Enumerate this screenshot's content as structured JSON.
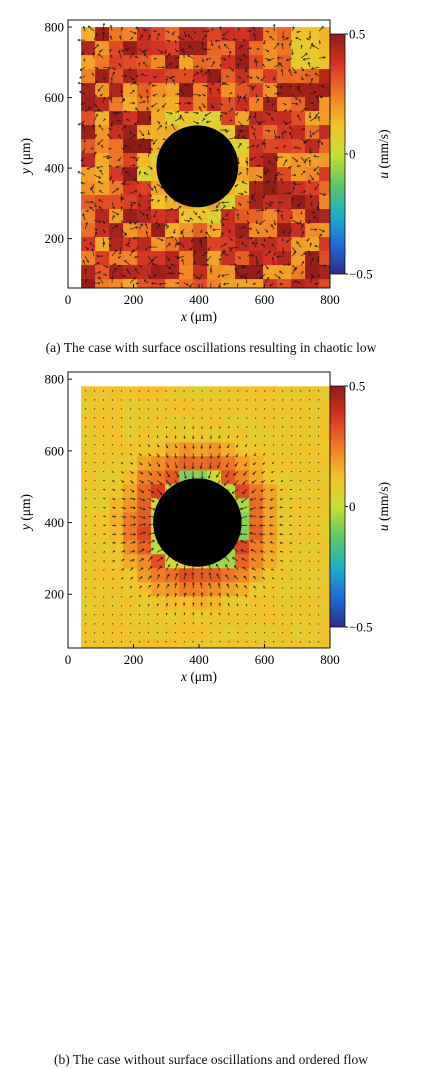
{
  "panels": [
    {
      "id": "a",
      "caption": "(a) The case with surface oscillations resulting in chaotic low",
      "flow": "chaotic",
      "chart_data": {
        "type": "heatmap",
        "title": "",
        "xlabel": "x (μm)",
        "ylabel": "y (μm)",
        "x_ticks": [
          "0",
          "200",
          "400",
          "600",
          "800"
        ],
        "y_ticks": [
          "200",
          "400",
          "600",
          "800"
        ],
        "xlim": [
          0,
          800
        ],
        "ylim": [
          60,
          820
        ],
        "colorbar": {
          "label": "u (mm/s)",
          "ticks": [
            "0.5",
            "0",
            "−0.5"
          ],
          "range": [
            -0.5,
            0.5
          ]
        },
        "field_extent": {
          "x": [
            40,
            780
          ],
          "y": [
            60,
            800
          ]
        },
        "obstacle": {
          "center": [
            395,
            405
          ],
          "radius": 125
        },
        "background_velocity": 0.33,
        "vector_field": "quiver arrows, random directions"
      }
    },
    {
      "id": "b",
      "caption": "(b) The case without surface oscillations and ordered flow",
      "flow": "ordered",
      "chart_data": {
        "type": "heatmap",
        "title": "",
        "xlabel": "x (μm)",
        "ylabel": "y (μm)",
        "x_ticks": [
          "0",
          "200",
          "400",
          "600",
          "800"
        ],
        "y_ticks": [
          "200",
          "400",
          "600",
          "800"
        ],
        "xlim": [
          0,
          800
        ],
        "ylim": [
          50,
          820
        ],
        "colorbar": {
          "label": "u (mm/s)",
          "ticks": [
            "0.5",
            "0",
            "−0.5"
          ],
          "range": [
            -0.5,
            0.5
          ]
        },
        "field_extent": {
          "x": [
            40,
            780
          ],
          "y": [
            60,
            780
          ]
        },
        "obstacle": {
          "center": [
            395,
            400
          ],
          "radius": 135
        },
        "background_velocity": 0.1,
        "vector_field": "quiver arrows pointing radially toward the circle"
      }
    }
  ],
  "colors": {
    "colormap": [
      "#2a2c8e",
      "#1f6cd8",
      "#1fb0c8",
      "#5ec864",
      "#c9de3a",
      "#f3c02a",
      "#ef7a26",
      "#d63424",
      "#8c1b18"
    ],
    "obstacle": "#000000",
    "arrow": "#1a1a1a"
  }
}
